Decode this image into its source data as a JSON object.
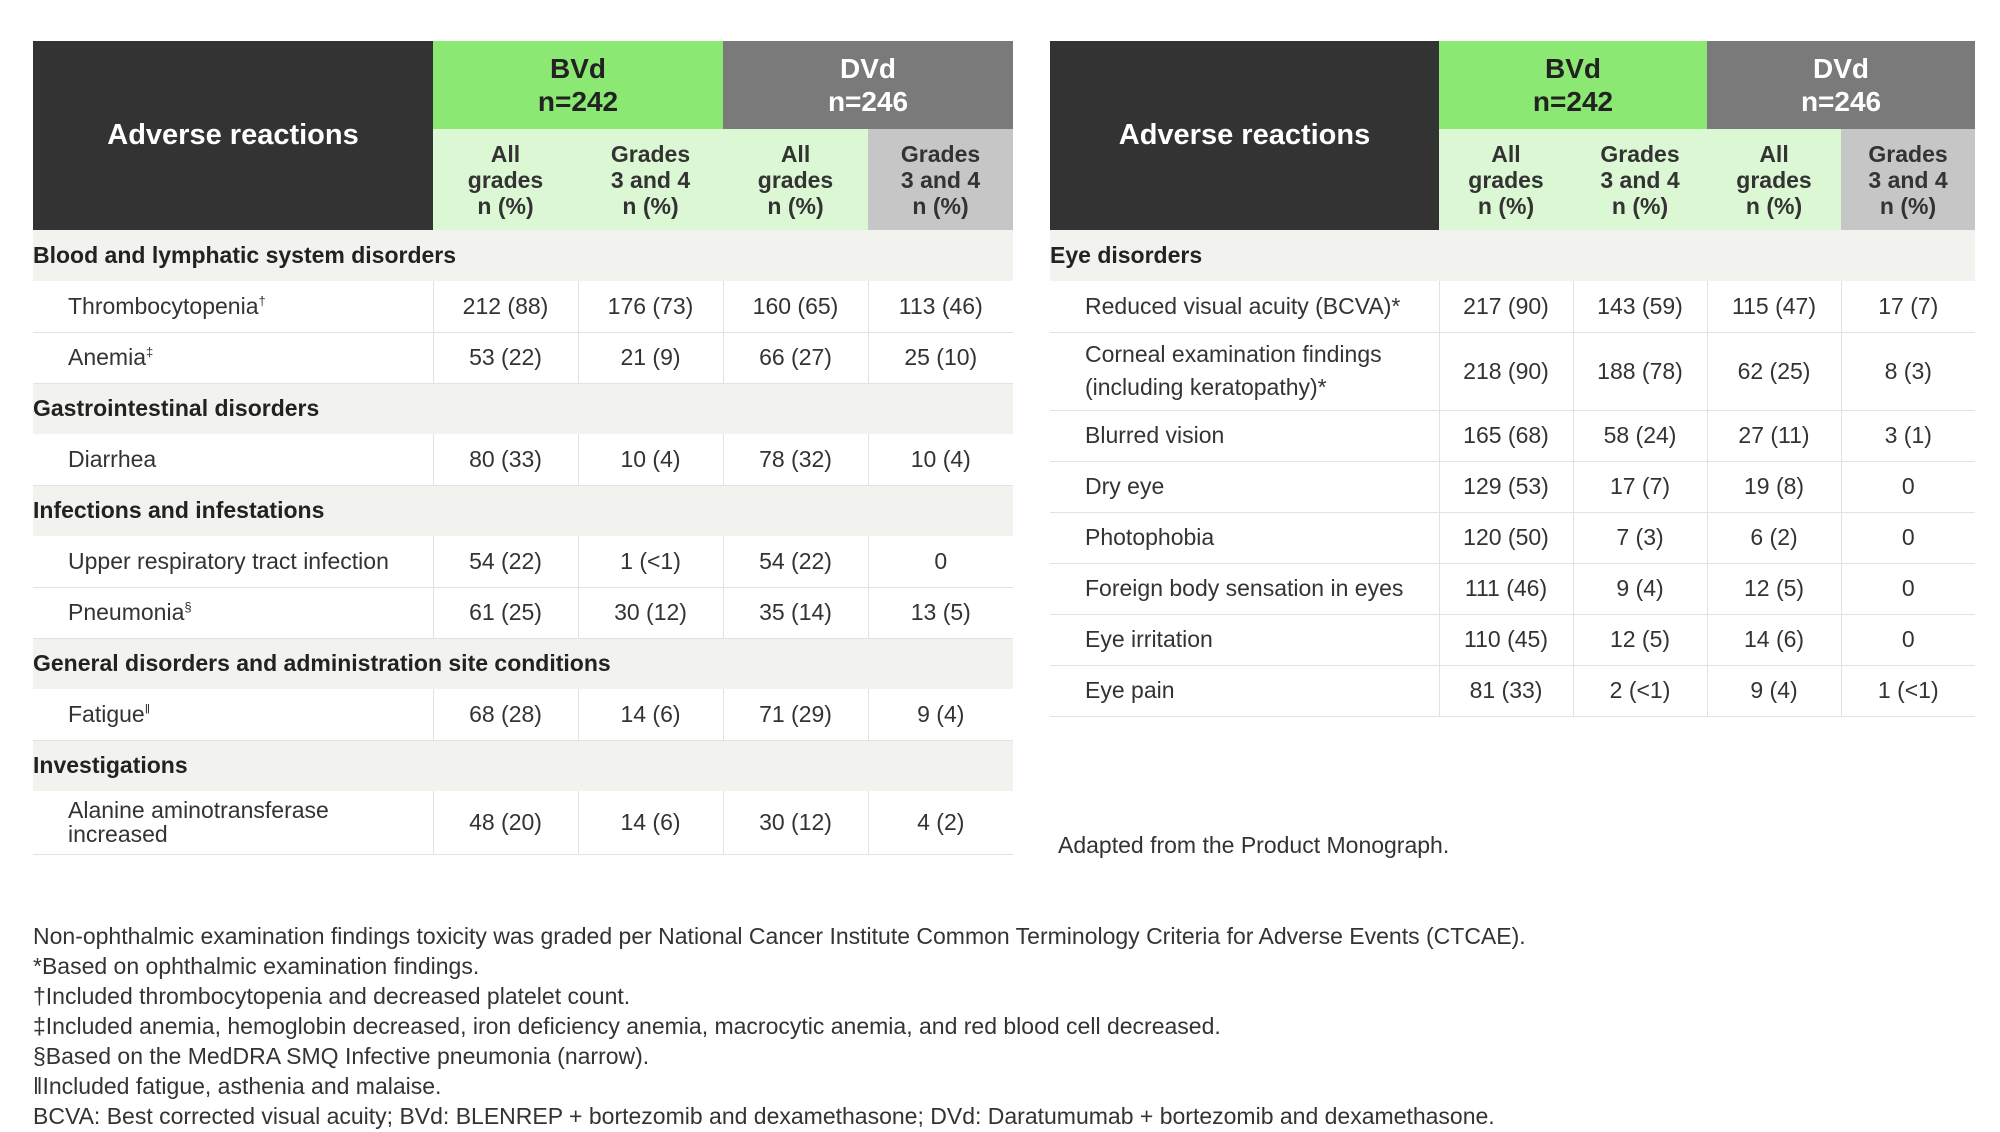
{
  "left_table": {
    "header": {
      "corner": "Adverse reactions",
      "bvd_name": "BVd",
      "bvd_n": "n=242",
      "dvd_name": "DVd",
      "dvd_n": "n=246",
      "sub": {
        "all_1": "All",
        "all_2": "grades",
        "all_3": "n (%)",
        "g_1": "Grades",
        "g_2": "3 and 4",
        "g_3": "n (%)"
      }
    },
    "sections": [
      {
        "title": "Blood and lymphatic system disorders",
        "rows": [
          {
            "name": "Thrombocytopenia",
            "fn": "†",
            "values": [
              "212 (88)",
              "176 (73)",
              "160 (65)",
              "113 (46)"
            ]
          },
          {
            "name": "Anemia",
            "fn": "‡",
            "values": [
              "53 (22)",
              "21 (9)",
              "66 (27)",
              "25 (10)"
            ]
          }
        ]
      },
      {
        "title": "Gastrointestinal disorders",
        "rows": [
          {
            "name": "Diarrhea",
            "fn": "",
            "values": [
              "80 (33)",
              "10 (4)",
              "78 (32)",
              "10 (4)"
            ]
          }
        ]
      },
      {
        "title": "Infections and infestations",
        "rows": [
          {
            "name": "Upper respiratory tract infection",
            "fn": "",
            "values": [
              "54 (22)",
              "1 (<1)",
              "54 (22)",
              "0"
            ]
          },
          {
            "name": "Pneumonia",
            "fn": "§",
            "values": [
              "61 (25)",
              "30 (12)",
              "35 (14)",
              "13 (5)"
            ]
          }
        ]
      },
      {
        "title": "General disorders and administration site conditions",
        "rows": [
          {
            "name": "Fatigue",
            "fn": "‖",
            "values": [
              "68 (28)",
              "14 (6)",
              "71 (29)",
              "9 (4)"
            ]
          }
        ]
      },
      {
        "title": "Investigations",
        "rows": [
          {
            "name": "Alanine aminotransferase increased",
            "fn": "",
            "values": [
              "48 (20)",
              "14 (6)",
              "30 (12)",
              "4 (2)"
            ]
          }
        ]
      }
    ]
  },
  "right_table": {
    "header": {
      "corner": "Adverse reactions",
      "bvd_name": "BVd",
      "bvd_n": "n=242",
      "dvd_name": "DVd",
      "dvd_n": "n=246",
      "sub": {
        "all_1": "All",
        "all_2": "grades",
        "all_3": "n (%)",
        "g_1": "Grades",
        "g_2": "3 and 4",
        "g_3": "n (%)"
      }
    },
    "sections": [
      {
        "title": "Eye disorders",
        "rows": [
          {
            "name": "Reduced visual acuity (BCVA)*",
            "fn": "",
            "values": [
              "217 (90)",
              "143 (59)",
              "115 (47)",
              "17 (7)"
            ]
          },
          {
            "name": "Corneal examination findings (including keratopathy)*",
            "fn": "",
            "values": [
              "218 (90)",
              "188 (78)",
              "62 (25)",
              "8 (3)"
            ]
          },
          {
            "name": "Blurred vision",
            "fn": "",
            "values": [
              "165 (68)",
              "58 (24)",
              "27 (11)",
              "3 (1)"
            ]
          },
          {
            "name": "Dry eye",
            "fn": "",
            "values": [
              "129 (53)",
              "17 (7)",
              "19 (8)",
              "0"
            ]
          },
          {
            "name": "Photophobia",
            "fn": "",
            "values": [
              "120 (50)",
              "7 (3)",
              "6 (2)",
              "0"
            ]
          },
          {
            "name": "Foreign body sensation in eyes",
            "fn": "",
            "values": [
              "111 (46)",
              "9 (4)",
              "12 (5)",
              "0"
            ]
          },
          {
            "name": "Eye irritation",
            "fn": "",
            "values": [
              "110 (45)",
              "12 (5)",
              "14 (6)",
              "0"
            ]
          },
          {
            "name": "Eye pain",
            "fn": "",
            "values": [
              "81 (33)",
              "2 (<1)",
              "9 (4)",
              "1 (<1)"
            ]
          }
        ]
      }
    ]
  },
  "adapted_note": "Adapted from the Product Monograph.",
  "footnotes": [
    "Non-ophthalmic examination findings toxicity was graded per National Cancer Institute Common Terminology Criteria for Adverse Events (CTCAE).",
    "*Based on ophthalmic examination findings.",
    "†Included thrombocytopenia and decreased platelet count.",
    "‡Included anemia, hemoglobin decreased, iron deficiency anemia, macrocytic anemia, and red blood cell decreased.",
    "§Based on the MedDRA SMQ Infective pneumonia (narrow).",
    "‖Included fatigue, asthenia and malaise.",
    "BCVA: Best corrected visual acuity; BVd: BLENREP + bortezomib and dexamethasone; DVd: Daratumumab + bortezomib and dexamethasone."
  ],
  "colors": {
    "header_dark": "#333333",
    "bvd_green": "#8be873",
    "bvd_light_green": "#dcf7d3",
    "dvd_gray": "#7a7a7a",
    "dvd_light_gray": "#c6c6c6",
    "section_bg": "#f2f2ef"
  }
}
